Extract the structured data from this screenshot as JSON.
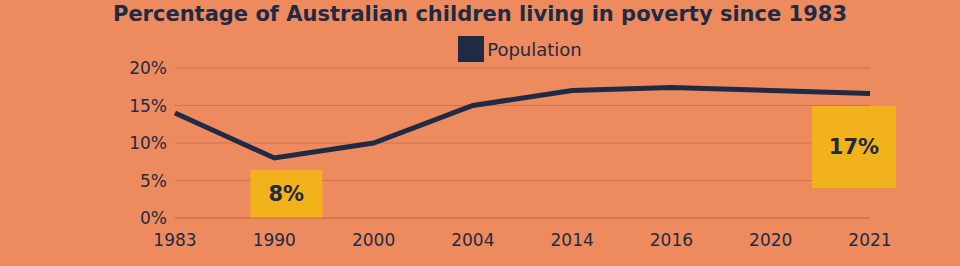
{
  "chart_data": {
    "type": "line",
    "title": "Percentage of Australian children living in poverty since 1983",
    "categories": [
      "1983",
      "1990",
      "2000",
      "2004",
      "2014",
      "2016",
      "2020",
      "2021"
    ],
    "series": [
      {
        "name": "Population",
        "color": "#1f2a44",
        "values": [
          14,
          8,
          10,
          15,
          17,
          17.4,
          17,
          16.6
        ]
      }
    ],
    "ylim": [
      0,
      20
    ],
    "yticks": [
      {
        "value": 0,
        "label": "0%"
      },
      {
        "value": 5,
        "label": "5%"
      },
      {
        "value": 10,
        "label": "10%"
      },
      {
        "value": 15,
        "label": "15%"
      },
      {
        "value": 20,
        "label": "20%"
      }
    ],
    "grid": true,
    "legend": "top",
    "annotations": [
      {
        "text": "8%",
        "x": "1990"
      },
      {
        "text": "17%",
        "x": "2021"
      }
    ]
  }
}
